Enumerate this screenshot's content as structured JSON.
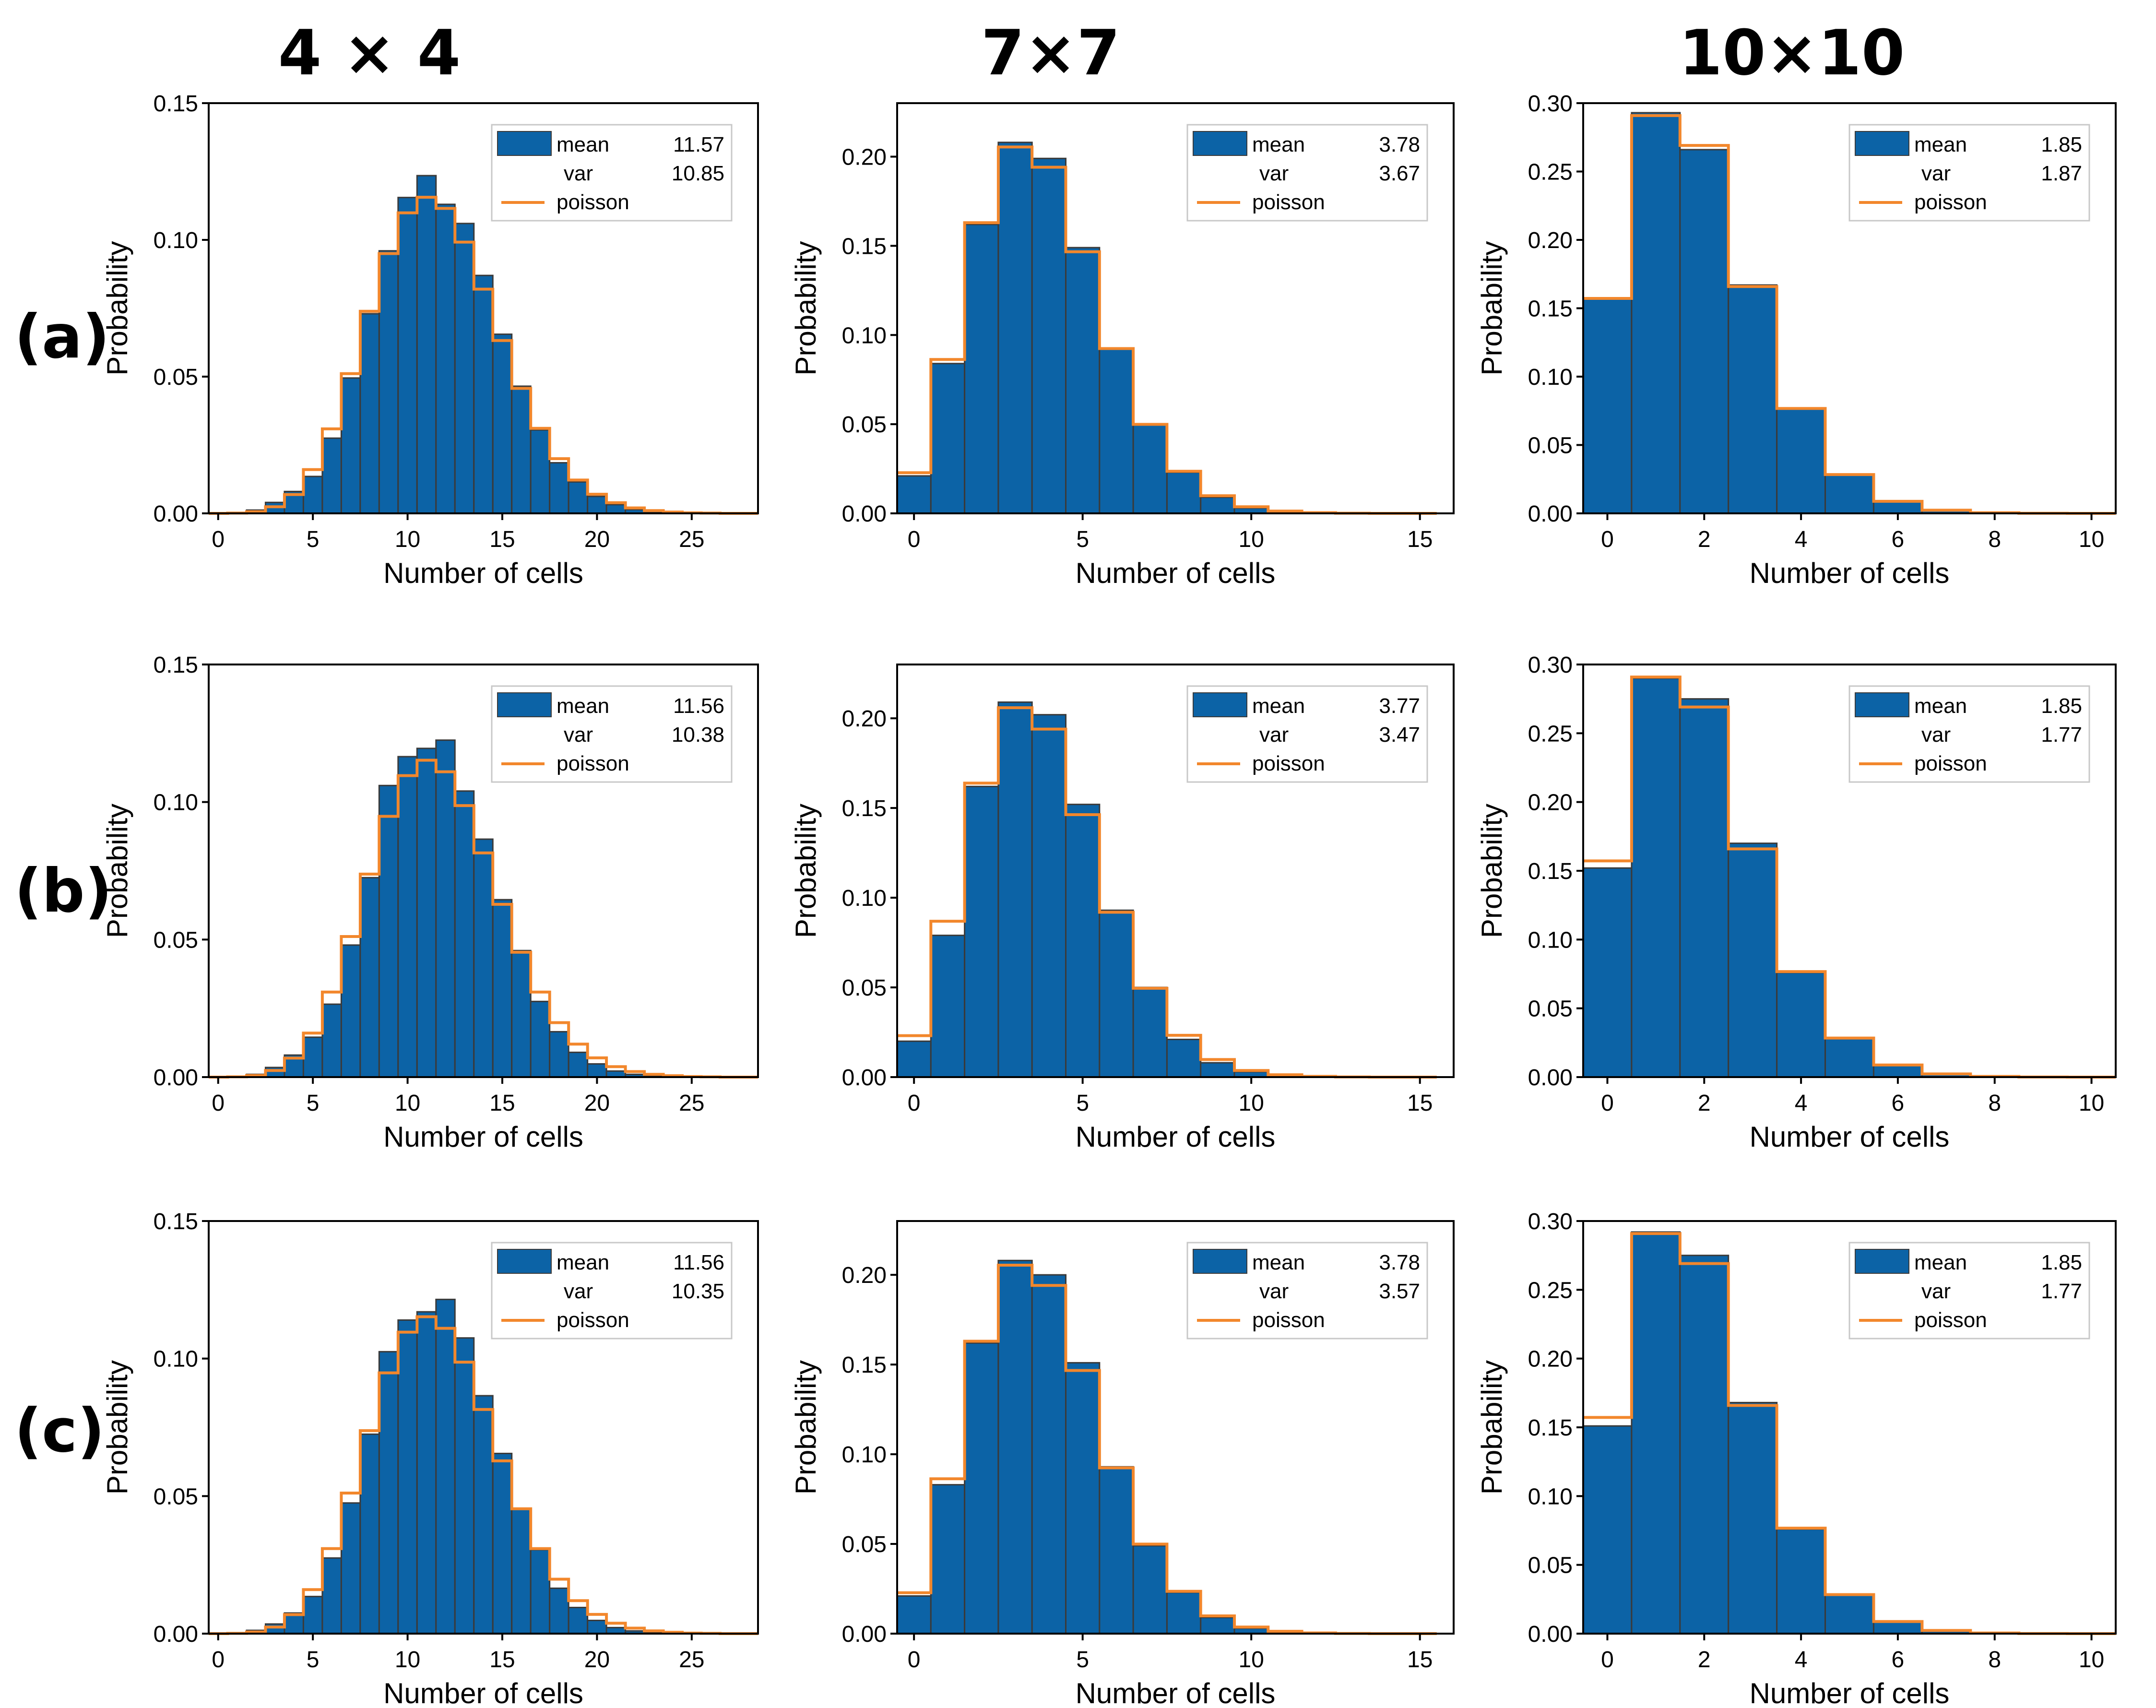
{
  "figure": {
    "column_titles": [
      "4 × 4",
      "7×7",
      "10×10"
    ],
    "row_labels": [
      "(a)",
      "(b)",
      "(c)"
    ],
    "legend_labels": {
      "mean": "mean",
      "var": "var",
      "poisson": "poisson"
    },
    "colors": {
      "bar": "#0c63a6",
      "bar_edge": "#3a3a3a",
      "poisson": "#f2872c"
    }
  },
  "chart_data": [
    {
      "type": "bar",
      "row": "(a)",
      "grid": "4 × 4",
      "title": "",
      "xlabel": "Number of cells",
      "ylabel": "Probability",
      "xlim": [
        -0.5,
        28.5
      ],
      "ylim": [
        0,
        0.15
      ],
      "xticks": [
        0,
        5,
        10,
        15,
        20,
        25
      ],
      "yticks": [
        "0.00",
        "0.05",
        "0.10",
        "0.15"
      ],
      "stats": {
        "mean": "11.57",
        "var": "10.85"
      },
      "x": [
        0,
        1,
        2,
        3,
        4,
        5,
        6,
        7,
        8,
        9,
        10,
        11,
        12,
        13,
        14,
        15,
        16,
        17,
        18,
        19,
        20,
        21,
        22,
        23,
        24,
        25,
        26,
        27,
        28
      ],
      "values": [
        0,
        0.0002,
        0.0012,
        0.004,
        0.008,
        0.0135,
        0.0275,
        0.0495,
        0.073,
        0.096,
        0.1155,
        0.1235,
        0.113,
        0.106,
        0.087,
        0.0655,
        0.0465,
        0.0305,
        0.0185,
        0.0115,
        0.0062,
        0.0032,
        0.0014,
        0.0006,
        0.0002,
        0.0001,
        0,
        0,
        0
      ],
      "poisson": [
        0,
        0.0001,
        0.0006,
        0.0024,
        0.0069,
        0.016,
        0.0309,
        0.0511,
        0.0739,
        0.095,
        0.1099,
        0.1156,
        0.1115,
        0.0992,
        0.082,
        0.0632,
        0.0457,
        0.0311,
        0.02,
        0.0122,
        0.007,
        0.0039,
        0.002,
        0.001,
        0.0005,
        0.0002,
        0.0001,
        0,
        0
      ]
    },
    {
      "type": "bar",
      "row": "(a)",
      "grid": "7×7",
      "title": "",
      "xlabel": "Number of cells",
      "ylabel": "Probability",
      "xlim": [
        -0.5,
        16
      ],
      "ylim": [
        0,
        0.23
      ],
      "xticks": [
        0,
        5,
        10,
        15
      ],
      "yticks": [
        "0.00",
        "0.05",
        "0.10",
        "0.15",
        "0.20"
      ],
      "stats": {
        "mean": "3.78",
        "var": "3.67"
      },
      "x": [
        0,
        1,
        2,
        3,
        4,
        5,
        6,
        7,
        8,
        9,
        10,
        11,
        12,
        13,
        14,
        15
      ],
      "values": [
        0.021,
        0.084,
        0.162,
        0.208,
        0.199,
        0.149,
        0.092,
        0.05,
        0.023,
        0.009,
        0.003,
        0.001,
        0.0004,
        0.0001,
        0,
        0
      ],
      "poisson": [
        0.0228,
        0.0863,
        0.163,
        0.2054,
        0.1941,
        0.1467,
        0.0924,
        0.0499,
        0.0236,
        0.0099,
        0.0037,
        0.0013,
        0.0004,
        0.0001,
        0,
        0
      ]
    },
    {
      "type": "bar",
      "row": "(a)",
      "grid": "10×10",
      "title": "",
      "xlabel": "Number of cells",
      "ylabel": "Probability",
      "xlim": [
        -0.5,
        10.5
      ],
      "ylim": [
        0,
        0.3
      ],
      "xticks": [
        0,
        2,
        4,
        6,
        8,
        10
      ],
      "yticks": [
        "0.00",
        "0.05",
        "0.10",
        "0.15",
        "0.20",
        "0.25",
        "0.30"
      ],
      "stats": {
        "mean": "1.85",
        "var": "1.87"
      },
      "x": [
        0,
        1,
        2,
        3,
        4,
        5,
        6,
        7,
        8,
        9,
        10
      ],
      "values": [
        0.157,
        0.293,
        0.266,
        0.167,
        0.077,
        0.028,
        0.009,
        0.002,
        0.0005,
        0.0001,
        0
      ],
      "poisson": [
        0.1572,
        0.2909,
        0.2691,
        0.1659,
        0.0767,
        0.0284,
        0.0088,
        0.0023,
        0.0005,
        0.0001,
        0
      ]
    },
    {
      "type": "bar",
      "row": "(b)",
      "grid": "4 × 4",
      "title": "",
      "xlabel": "Number of cells",
      "ylabel": "Probability",
      "xlim": [
        -0.5,
        28.5
      ],
      "ylim": [
        0,
        0.15
      ],
      "xticks": [
        0,
        5,
        10,
        15,
        20,
        25
      ],
      "yticks": [
        "0.00",
        "0.05",
        "0.10",
        "0.15"
      ],
      "stats": {
        "mean": "11.56",
        "var": "10.38"
      },
      "x": [
        0,
        1,
        2,
        3,
        4,
        5,
        6,
        7,
        8,
        9,
        10,
        11,
        12,
        13,
        14,
        15,
        16,
        17,
        18,
        19,
        20,
        21,
        22,
        23,
        24,
        25,
        26,
        27,
        28
      ],
      "values": [
        0,
        0.0002,
        0.001,
        0.0035,
        0.008,
        0.0145,
        0.0265,
        0.048,
        0.0725,
        0.106,
        0.1165,
        0.1195,
        0.1225,
        0.104,
        0.0865,
        0.0645,
        0.046,
        0.0275,
        0.0165,
        0.009,
        0.0048,
        0.0022,
        0.001,
        0.0004,
        0.0001,
        0,
        0,
        0,
        0
      ],
      "poisson": [
        0,
        0.0001,
        0.0006,
        0.0024,
        0.0069,
        0.016,
        0.0309,
        0.0511,
        0.0738,
        0.0948,
        0.1096,
        0.1152,
        0.111,
        0.0987,
        0.0815,
        0.0628,
        0.0454,
        0.0309,
        0.0198,
        0.012,
        0.007,
        0.0038,
        0.002,
        0.001,
        0.0005,
        0.0002,
        0.0001,
        0,
        0
      ]
    },
    {
      "type": "bar",
      "row": "(b)",
      "grid": "7×7",
      "title": "",
      "xlabel": "Number of cells",
      "ylabel": "Probability",
      "xlim": [
        -0.5,
        16
      ],
      "ylim": [
        0,
        0.23
      ],
      "xticks": [
        0,
        5,
        10,
        15
      ],
      "yticks": [
        "0.00",
        "0.05",
        "0.10",
        "0.15",
        "0.20"
      ],
      "stats": {
        "mean": "3.77",
        "var": "3.47"
      },
      "x": [
        0,
        1,
        2,
        3,
        4,
        5,
        6,
        7,
        8,
        9,
        10,
        11,
        12,
        13,
        14,
        15
      ],
      "values": [
        0.02,
        0.079,
        0.162,
        0.209,
        0.202,
        0.152,
        0.093,
        0.05,
        0.021,
        0.008,
        0.003,
        0.001,
        0.0003,
        0.0001,
        0,
        0
      ],
      "poisson": [
        0.0231,
        0.0869,
        0.1639,
        0.2059,
        0.194,
        0.1463,
        0.0919,
        0.0495,
        0.0233,
        0.0098,
        0.0037,
        0.0013,
        0.0004,
        0.0001,
        0,
        0
      ]
    },
    {
      "type": "bar",
      "row": "(b)",
      "grid": "10×10",
      "title": "",
      "xlabel": "Number of cells",
      "ylabel": "Probability",
      "xlim": [
        -0.5,
        10.5
      ],
      "ylim": [
        0,
        0.3
      ],
      "xticks": [
        0,
        2,
        4,
        6,
        8,
        10
      ],
      "yticks": [
        "0.00",
        "0.05",
        "0.10",
        "0.15",
        "0.20",
        "0.25",
        "0.30"
      ],
      "stats": {
        "mean": "1.85",
        "var": "1.77"
      },
      "x": [
        0,
        1,
        2,
        3,
        4,
        5,
        6,
        7,
        8,
        9,
        10
      ],
      "values": [
        0.152,
        0.29,
        0.275,
        0.17,
        0.076,
        0.028,
        0.009,
        0.002,
        0.0005,
        0.0001,
        0
      ],
      "poisson": [
        0.1572,
        0.2909,
        0.2691,
        0.1659,
        0.0767,
        0.0284,
        0.0088,
        0.0023,
        0.0005,
        0.0001,
        0
      ]
    },
    {
      "type": "bar",
      "row": "(c)",
      "grid": "4 × 4",
      "title": "",
      "xlabel": "Number of cells",
      "ylabel": "Probability",
      "xlim": [
        -0.5,
        28.5
      ],
      "ylim": [
        0,
        0.15
      ],
      "xticks": [
        0,
        5,
        10,
        15,
        20,
        25
      ],
      "yticks": [
        "0.00",
        "0.05",
        "0.10",
        "0.15"
      ],
      "stats": {
        "mean": "11.56",
        "var": "10.35"
      },
      "x": [
        0,
        1,
        2,
        3,
        4,
        5,
        6,
        7,
        8,
        9,
        10,
        11,
        12,
        13,
        14,
        15,
        16,
        17,
        18,
        19,
        20,
        21,
        22,
        23,
        24,
        25,
        26,
        27,
        28
      ],
      "values": [
        0,
        0.0002,
        0.0012,
        0.0035,
        0.0075,
        0.0135,
        0.0275,
        0.0475,
        0.0725,
        0.1025,
        0.114,
        0.117,
        0.1215,
        0.1075,
        0.0865,
        0.0655,
        0.0455,
        0.0305,
        0.0165,
        0.0095,
        0.0048,
        0.0022,
        0.001,
        0.0004,
        0.0001,
        0,
        0,
        0,
        0
      ],
      "poisson": [
        0,
        0.0001,
        0.0006,
        0.0024,
        0.0069,
        0.016,
        0.0309,
        0.0511,
        0.0738,
        0.0948,
        0.1096,
        0.1152,
        0.111,
        0.0987,
        0.0815,
        0.0628,
        0.0454,
        0.0309,
        0.0198,
        0.012,
        0.007,
        0.0038,
        0.002,
        0.001,
        0.0005,
        0.0002,
        0.0001,
        0,
        0
      ]
    },
    {
      "type": "bar",
      "row": "(c)",
      "grid": "7×7",
      "title": "",
      "xlabel": "Number of cells",
      "ylabel": "Probability",
      "xlim": [
        -0.5,
        16
      ],
      "ylim": [
        0,
        0.23
      ],
      "xticks": [
        0,
        5,
        10,
        15
      ],
      "yticks": [
        "0.00",
        "0.05",
        "0.10",
        "0.15",
        "0.20"
      ],
      "stats": {
        "mean": "3.78",
        "var": "3.57"
      },
      "x": [
        0,
        1,
        2,
        3,
        4,
        5,
        6,
        7,
        8,
        9,
        10,
        11,
        12,
        13,
        14,
        15
      ],
      "values": [
        0.021,
        0.083,
        0.162,
        0.208,
        0.2,
        0.151,
        0.093,
        0.049,
        0.023,
        0.009,
        0.003,
        0.001,
        0.0004,
        0.0001,
        0,
        0
      ],
      "poisson": [
        0.0228,
        0.0863,
        0.163,
        0.2054,
        0.1941,
        0.1467,
        0.0924,
        0.0499,
        0.0236,
        0.0099,
        0.0037,
        0.0013,
        0.0004,
        0.0001,
        0,
        0
      ]
    },
    {
      "type": "bar",
      "row": "(c)",
      "grid": "10×10",
      "title": "",
      "xlabel": "Number of cells",
      "ylabel": "Probability",
      "xlim": [
        -0.5,
        10.5
      ],
      "ylim": [
        0,
        0.3
      ],
      "xticks": [
        0,
        2,
        4,
        6,
        8,
        10
      ],
      "yticks": [
        "0.00",
        "0.05",
        "0.10",
        "0.15",
        "0.20",
        "0.25",
        "0.30"
      ],
      "stats": {
        "mean": "1.85",
        "var": "1.77"
      },
      "x": [
        0,
        1,
        2,
        3,
        4,
        5,
        6,
        7,
        8,
        9,
        10
      ],
      "values": [
        0.151,
        0.292,
        0.275,
        0.168,
        0.076,
        0.028,
        0.009,
        0.002,
        0.0005,
        0.0001,
        0
      ],
      "poisson": [
        0.1572,
        0.2909,
        0.2691,
        0.1659,
        0.0767,
        0.0284,
        0.0088,
        0.0023,
        0.0005,
        0.0001,
        0
      ]
    }
  ]
}
